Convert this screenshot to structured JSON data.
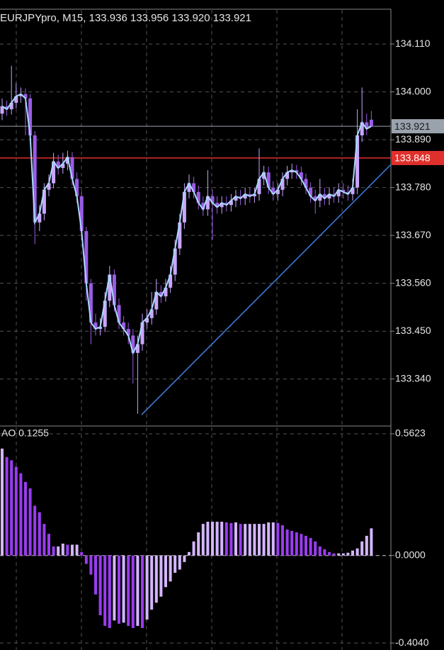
{
  "chart_data": [
    {
      "type": "candlestick",
      "title": "EURJPYpro, M15, 133.936 133.956 133.920 133.921",
      "open": [
        133.95,
        133.967,
        133.96,
        133.975,
        133.99,
        133.995,
        133.985,
        133.9,
        133.7,
        133.72,
        133.775,
        133.79,
        133.84,
        133.825,
        133.835,
        133.85,
        133.8,
        133.76,
        133.68,
        133.56,
        133.47,
        133.455,
        133.46,
        133.52,
        133.58,
        133.51,
        133.47,
        133.455,
        133.44,
        133.4,
        133.42,
        133.47,
        133.48,
        133.5,
        133.54,
        133.53,
        133.55,
        133.58,
        133.64,
        133.7,
        133.77,
        133.79,
        133.77,
        133.745,
        133.73,
        133.76,
        133.745,
        133.735,
        133.745,
        133.74,
        133.75,
        133.76,
        133.755,
        133.765,
        133.76,
        133.765,
        133.8,
        133.815,
        133.78,
        133.765,
        133.775,
        133.8,
        133.815,
        133.82,
        133.815,
        133.8,
        133.78,
        133.76,
        133.75,
        133.765,
        133.755,
        133.765,
        133.76,
        133.775,
        133.77,
        133.765,
        133.78,
        133.9,
        133.93,
        133.936
      ],
      "high": [
        133.985,
        133.98,
        134.06,
        134.02,
        134.01,
        134.008,
        133.995,
        133.91,
        133.74,
        133.79,
        133.81,
        133.86,
        133.855,
        133.86,
        133.865,
        133.862,
        133.815,
        133.772,
        133.69,
        133.57,
        133.49,
        133.48,
        133.54,
        133.6,
        133.592,
        133.525,
        133.485,
        133.47,
        133.455,
        133.44,
        133.49,
        133.5,
        133.54,
        133.57,
        133.555,
        133.57,
        133.6,
        133.66,
        133.72,
        133.79,
        133.81,
        133.805,
        133.785,
        133.76,
        133.82,
        133.775,
        133.76,
        133.76,
        133.76,
        133.765,
        133.775,
        133.775,
        133.78,
        133.78,
        133.78,
        133.87,
        133.83,
        133.828,
        133.795,
        133.79,
        133.815,
        133.83,
        133.835,
        133.832,
        133.828,
        133.812,
        133.792,
        133.775,
        133.8,
        133.78,
        133.78,
        133.78,
        133.79,
        133.79,
        133.785,
        133.8,
        133.96,
        134.01,
        133.95,
        133.956
      ],
      "low": [
        133.935,
        133.945,
        133.948,
        133.962,
        133.975,
        133.9,
        133.88,
        133.65,
        133.68,
        133.705,
        133.76,
        133.778,
        133.81,
        133.812,
        133.82,
        133.785,
        133.745,
        133.66,
        133.52,
        133.42,
        133.44,
        133.44,
        133.448,
        133.505,
        133.495,
        133.455,
        133.44,
        133.42,
        133.33,
        133.26,
        133.405,
        133.455,
        133.465,
        133.488,
        133.515,
        133.518,
        133.538,
        133.565,
        133.625,
        133.685,
        133.755,
        133.755,
        133.73,
        133.715,
        133.715,
        133.66,
        133.72,
        133.72,
        133.725,
        133.725,
        133.735,
        133.74,
        133.74,
        133.745,
        133.745,
        133.75,
        133.785,
        133.765,
        133.75,
        133.75,
        133.76,
        133.785,
        133.8,
        133.8,
        133.785,
        133.765,
        133.745,
        133.72,
        133.735,
        133.74,
        133.74,
        133.745,
        133.745,
        133.755,
        133.75,
        133.75,
        133.765,
        133.885,
        133.9,
        133.92
      ],
      "close": [
        133.967,
        133.96,
        133.975,
        133.99,
        133.995,
        133.985,
        133.9,
        133.7,
        133.72,
        133.775,
        133.79,
        133.84,
        133.825,
        133.835,
        133.85,
        133.8,
        133.76,
        133.68,
        133.56,
        133.47,
        133.455,
        133.46,
        133.52,
        133.58,
        133.51,
        133.47,
        133.455,
        133.44,
        133.4,
        133.42,
        133.47,
        133.48,
        133.5,
        133.54,
        133.53,
        133.55,
        133.58,
        133.64,
        133.7,
        133.77,
        133.79,
        133.77,
        133.745,
        133.73,
        133.76,
        133.745,
        133.735,
        133.745,
        133.74,
        133.75,
        133.76,
        133.755,
        133.765,
        133.76,
        133.765,
        133.8,
        133.815,
        133.78,
        133.765,
        133.775,
        133.8,
        133.815,
        133.82,
        133.815,
        133.8,
        133.78,
        133.76,
        133.75,
        133.765,
        133.755,
        133.765,
        133.76,
        133.775,
        133.77,
        133.765,
        133.78,
        133.9,
        133.93,
        133.915,
        133.921
      ],
      "up_color": "#c9a6ff",
      "down_color": "#9b5ce6",
      "line_color": "#a9d8ff",
      "ylim": [
        133.232,
        134.19
      ],
      "yticks": [
        {
          "value": 134.11,
          "label": "134.110"
        },
        {
          "value": 134.0,
          "label": "134.000"
        },
        {
          "value": 133.89,
          "label": "133.890"
        },
        {
          "value": 133.78,
          "label": "133.780"
        },
        {
          "value": 133.67,
          "label": "133.670"
        },
        {
          "value": 133.56,
          "label": "133.560"
        },
        {
          "value": 133.45,
          "label": "133.450"
        },
        {
          "value": 133.34,
          "label": "133.340"
        }
      ],
      "price_line": 133.921,
      "price_line_color": "#9aa3ad",
      "level_line": 133.848,
      "level_line_color": "#e0302c",
      "trendline": [
        133.258,
        133.833
      ],
      "trendline_color": "#3f7fe0",
      "grid": true
    },
    {
      "type": "bar",
      "title": "AO 0.1255",
      "values": [
        0.494,
        0.455,
        0.44,
        0.41,
        0.38,
        0.34,
        0.31,
        0.23,
        0.2,
        0.146,
        0.1,
        0.042,
        0.042,
        0.055,
        0.05,
        0.05,
        0.05,
        0.016,
        -0.039,
        -0.088,
        -0.18,
        -0.276,
        -0.325,
        -0.335,
        -0.3,
        -0.315,
        -0.31,
        -0.325,
        -0.335,
        -0.325,
        -0.335,
        -0.296,
        -0.25,
        -0.218,
        -0.19,
        -0.146,
        -0.12,
        -0.08,
        -0.065,
        -0.03,
        0.016,
        0.065,
        0.107,
        0.146,
        0.156,
        0.156,
        0.156,
        0.156,
        0.153,
        0.15,
        0.153,
        0.146,
        0.146,
        0.146,
        0.146,
        0.146,
        0.146,
        0.153,
        0.153,
        0.15,
        0.14,
        0.12,
        0.114,
        0.107,
        0.1,
        0.091,
        0.081,
        0.065,
        0.042,
        0.029,
        0.016,
        0.01,
        0.01,
        0.01,
        0.013,
        0.023,
        0.033,
        0.065,
        0.091,
        0.1255
      ],
      "up_color": "#d4b6ff",
      "down_color": "#9a3cf0",
      "ylim": [
        -0.4365,
        0.595
      ],
      "yticks": [
        0.5623,
        {
          "value": 0,
          "label": "0.0000"
        },
        {
          "value": -0.404,
          "label": "-0.4040"
        }
      ],
      "grid": true
    }
  ]
}
